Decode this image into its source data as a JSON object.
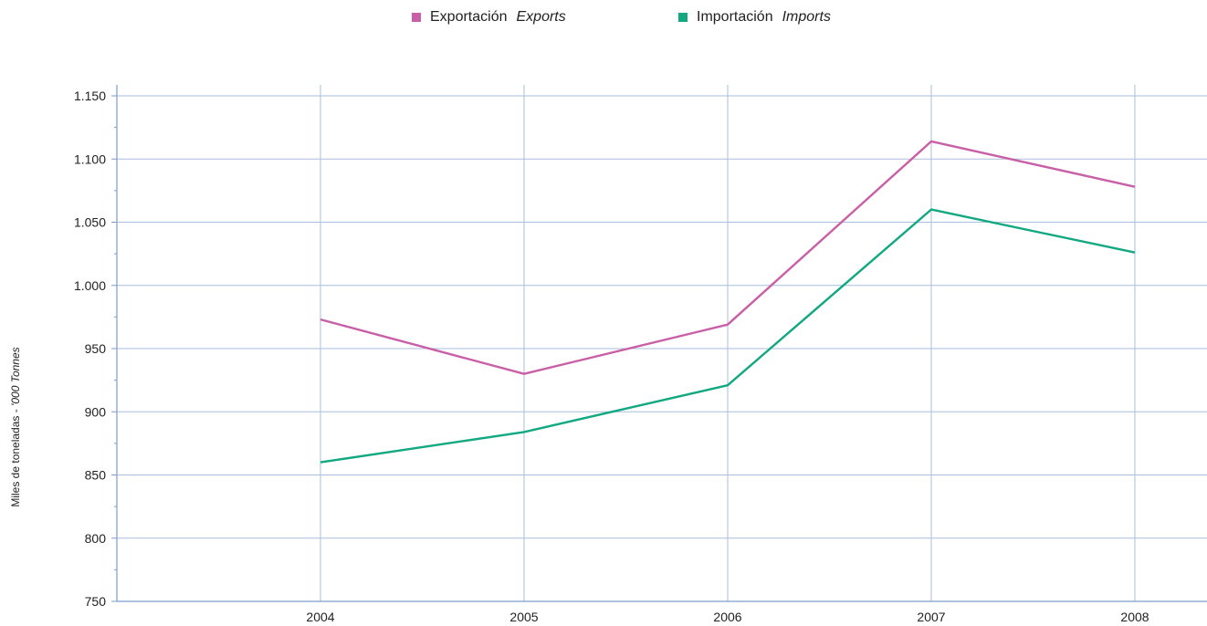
{
  "chart_data": {
    "type": "line",
    "categories": [
      "2004",
      "2005",
      "2006",
      "2007",
      "2008"
    ],
    "series": [
      {
        "name": "Exportación Exports",
        "name_es": "Exportación",
        "name_en": "Exports",
        "color": "#c95fa6",
        "values": [
          973,
          930,
          969,
          1114,
          1078
        ]
      },
      {
        "name": "Importación Imports",
        "name_es": "Importación",
        "name_en": "Imports",
        "color": "#12a882",
        "values": [
          860,
          884,
          921,
          1060,
          1026
        ]
      }
    ],
    "ylim": [
      750,
      1150
    ],
    "y_ticks": [
      750,
      800,
      850,
      900,
      950,
      1000,
      1050,
      1100,
      1150
    ],
    "y_tick_labels": [
      "750",
      "800",
      "850",
      "900",
      "950",
      "1.000",
      "1.050",
      "1.100",
      "1.150"
    ],
    "ylabel_es": "Miles de toneladas - ",
    "ylabel_en": "'000 Tonnes",
    "grid": true,
    "legend_position": "top-center",
    "grid_color": "#a9bfdc",
    "axis_color": "#7d9ccc"
  }
}
